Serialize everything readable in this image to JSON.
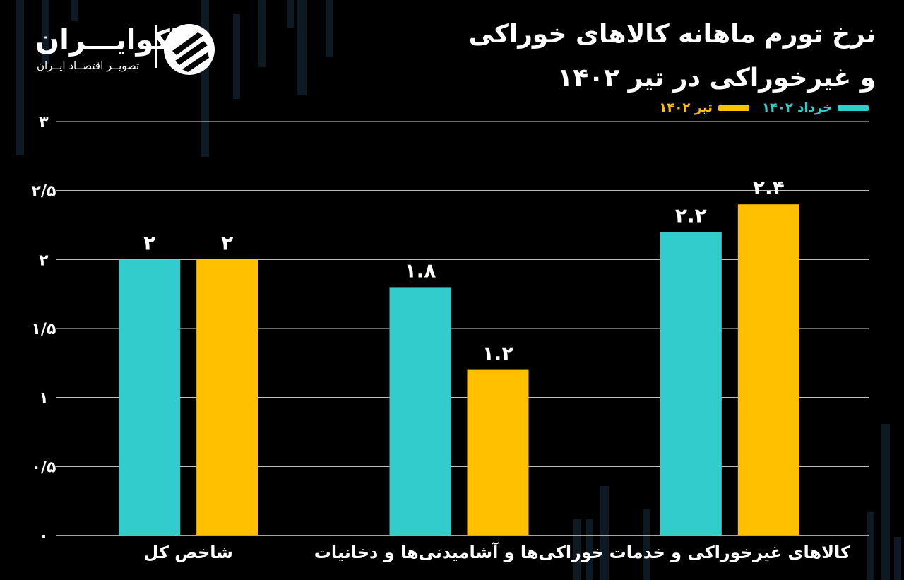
{
  "brand": {
    "name": "اکوایـــران",
    "tagline": "تصویــر اقتصــاد ایــران"
  },
  "title_line1": "نرخ تورم ماهانه کالاهای خوراکی",
  "title_line2": "و غیرخوراکی در تیر ۱۴۰۲",
  "colors": {
    "series1": "#33CCCC",
    "series2": "#FFC000",
    "grid": "#d9d9d9"
  },
  "chart_data": {
    "type": "bar",
    "categories": [
      "شاخص کل",
      "خوراکی‌ها و آشامیدنی‌ها و دخانیات",
      "کالاهای غیرخوراکی و خدمات"
    ],
    "series": [
      {
        "name": "خرداد ۱۴۰۲",
        "values": [
          2,
          1.8,
          2.2
        ],
        "labels": [
          "۲",
          "۱.۸",
          "۲.۲"
        ]
      },
      {
        "name": "تیر ۱۴۰۲",
        "values": [
          2,
          1.2,
          2.4
        ],
        "labels": [
          "۲",
          "۱.۲",
          "۲.۴"
        ]
      }
    ],
    "ylim": [
      0,
      3
    ],
    "yticks": [
      0,
      0.5,
      1,
      1.5,
      2,
      2.5,
      3
    ],
    "ytick_labels": [
      "۰",
      "۰/۵",
      "۱",
      "۱/۵",
      "۲",
      "۲/۵",
      "۳"
    ],
    "grid": true,
    "legend_position": "top-right"
  }
}
